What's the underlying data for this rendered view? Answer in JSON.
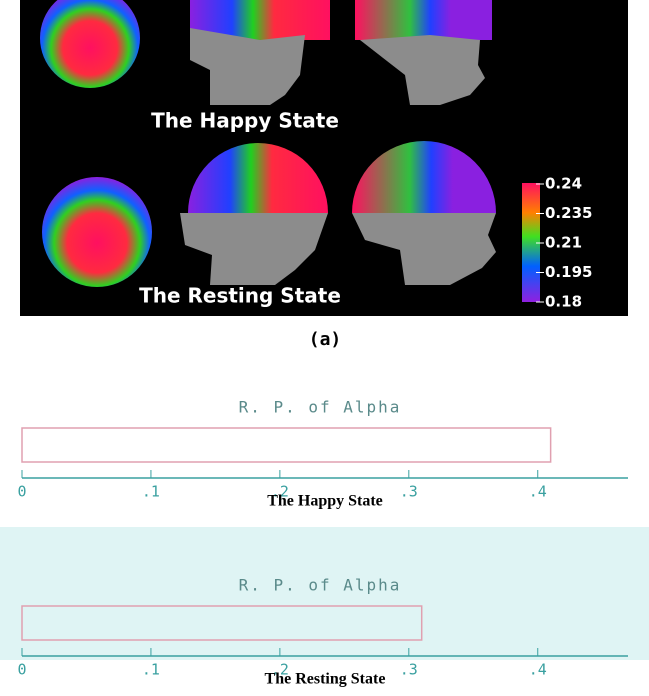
{
  "panel_a": {
    "happy_label": "The Happy State",
    "resting_label": "The Resting State",
    "colorbar_labels": [
      "0.24",
      "0.235",
      "0.21",
      "0.195",
      "0.18"
    ],
    "caption": "(a)"
  },
  "panel_b": {
    "charts": [
      {
        "title": "R. P. of Alpha",
        "value": 0.41,
        "xlim": [
          0,
          0.47
        ],
        "xticks": [
          0,
          {
            "value": 0.1,
            "label": ".1"
          },
          {
            "value": 0.2,
            "label": ".2"
          },
          {
            "value": 0.3,
            "label": ".3"
          },
          {
            "value": 0.4,
            "label": ".4"
          }
        ],
        "caption": "The Happy State"
      },
      {
        "title": "R. P. of Alpha",
        "value": 0.31,
        "xlim": [
          0,
          0.47
        ],
        "xticks": [
          0,
          {
            "value": 0.1,
            "label": ".1"
          },
          {
            "value": 0.2,
            "label": ".2"
          },
          {
            "value": 0.3,
            "label": ".3"
          },
          {
            "value": 0.4,
            "label": ".4"
          }
        ],
        "caption": "The Resting State"
      }
    ]
  }
}
